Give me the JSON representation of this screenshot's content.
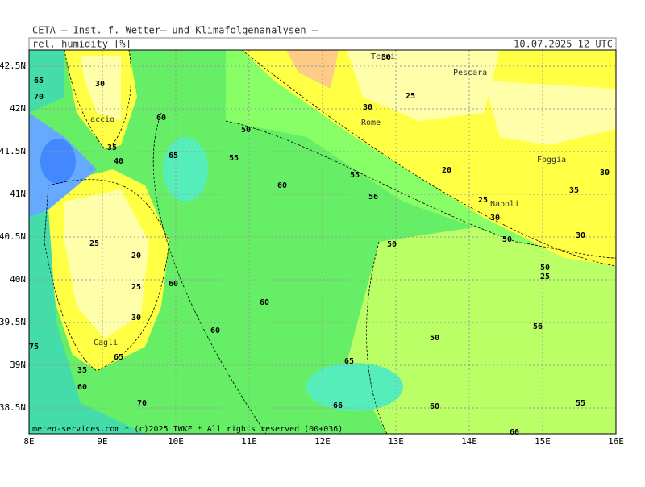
{
  "header": {
    "title": "CETA — Inst. f. Wetter— und Klimafolgenanalysen —",
    "variable": "rel. humidity [%]",
    "valid_time": "10.07.2025 12 UTC"
  },
  "map": {
    "lon_labels": [
      "8E",
      "9E",
      "10E",
      "11E",
      "12E",
      "13E",
      "14E",
      "15E",
      "16E"
    ],
    "lat_labels": [
      "42.5N",
      "42N",
      "41.5N",
      "41N",
      "40.5N",
      "40N",
      "39.5N",
      "39N",
      "38.5N"
    ],
    "cities": [
      "Terni",
      "Pescara",
      "Rome",
      "Napoli",
      "Foggia",
      "accio",
      "Cagli"
    ],
    "contour_labels": [
      "65",
      "70",
      "30",
      "60",
      "50",
      "55",
      "65",
      "60",
      "55",
      "56",
      "30",
      "25",
      "30",
      "20",
      "25",
      "30",
      "50",
      "30",
      "35",
      "30",
      "50",
      "50",
      "25",
      "60",
      "60",
      "25",
      "20",
      "25",
      "30",
      "35",
      "40",
      "60",
      "50",
      "56",
      "65",
      "66",
      "60",
      "55",
      "70",
      "60",
      "35",
      "65",
      "75",
      "60"
    ],
    "footer": "meteo-services.com * (c)2025 IWKF * All rights reserved (00+036)"
  }
}
